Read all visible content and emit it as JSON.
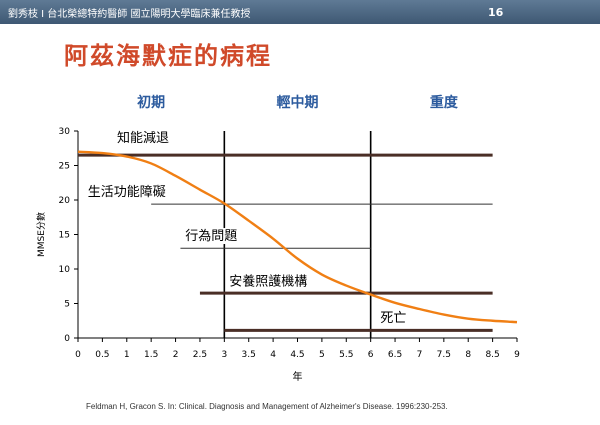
{
  "header": {
    "left_text": "劉秀枝 I 台北榮總特約醫師 國立陽明大學臨床兼任教授",
    "page_number": "16"
  },
  "slide": {
    "title": "阿茲海默症的病程",
    "citation": "Feldman H, Gracon S. In: Clinical. Diagnosis and Management of  Alzheimer's Disease. 1996:230-253."
  },
  "colors": {
    "curve": "#f07f14",
    "title": "#d04a2a",
    "phase_label": "#2c5b9e",
    "header_bar": "#4b6580",
    "stage_line": "#4a2e26",
    "thin_line": "#333333"
  },
  "chart_data": {
    "type": "line",
    "xlabel": "年",
    "ylabel": "MMSE分數",
    "xlim": [
      0,
      9
    ],
    "ylim": [
      0,
      30
    ],
    "x_ticks": [
      "0",
      "0.5",
      "1",
      "1.5",
      "2",
      "2.5",
      "3",
      "3.5",
      "4",
      "4.5",
      "5",
      "5.5",
      "6",
      "6.5",
      "7",
      "7.5",
      "8",
      "8.5",
      "9"
    ],
    "y_ticks": [
      "0",
      "5",
      "10",
      "15",
      "20",
      "25",
      "30"
    ],
    "series": [
      {
        "x": [
          0,
          0.5,
          1,
          1.5,
          2,
          2.5,
          3,
          3.5,
          4,
          4.5,
          5,
          5.5,
          6,
          6.5,
          7,
          7.5,
          8,
          8.5,
          9
        ],
        "y": [
          27,
          26.8,
          26.3,
          25.3,
          23.5,
          21.5,
          19.5,
          17,
          14.4,
          11.5,
          9.2,
          7.6,
          6.3,
          5.1,
          4.2,
          3.4,
          2.8,
          2.5,
          2.3
        ]
      }
    ],
    "phases": [
      {
        "label": "初期",
        "x_start": 0,
        "x_end": 3
      },
      {
        "label": "輕中期",
        "x_start": 3,
        "x_end": 6
      },
      {
        "label": "重度",
        "x_start": 6,
        "x_end": 9
      }
    ],
    "phase_boundaries": [
      3,
      6
    ],
    "milestones": [
      {
        "label": "知能減退",
        "y": 26.5,
        "x_start": 0,
        "x_end": 8.5,
        "thick": true,
        "label_x": 0.8,
        "label_y": 28.4
      },
      {
        "label": "生活功能障礙",
        "y": 19.4,
        "x_start": 1.5,
        "x_end": 8.5,
        "thick": false,
        "label_x": 0.2,
        "label_y": 20.6
      },
      {
        "label": "行為問題",
        "y": 13,
        "x_start": 2.1,
        "x_end": 6,
        "thick": false,
        "label_x": 2.2,
        "label_y": 14.2
      },
      {
        "label": "安養照護機構",
        "y": 6.5,
        "x_start": 2.5,
        "x_end": 8.5,
        "thick": true,
        "label_x": 3.1,
        "label_y": 7.6
      },
      {
        "label": "死亡",
        "y": 1.1,
        "x_start": 3,
        "x_end": 8.5,
        "thick": true,
        "label_x": 6.2,
        "label_y": 2.3
      }
    ]
  }
}
